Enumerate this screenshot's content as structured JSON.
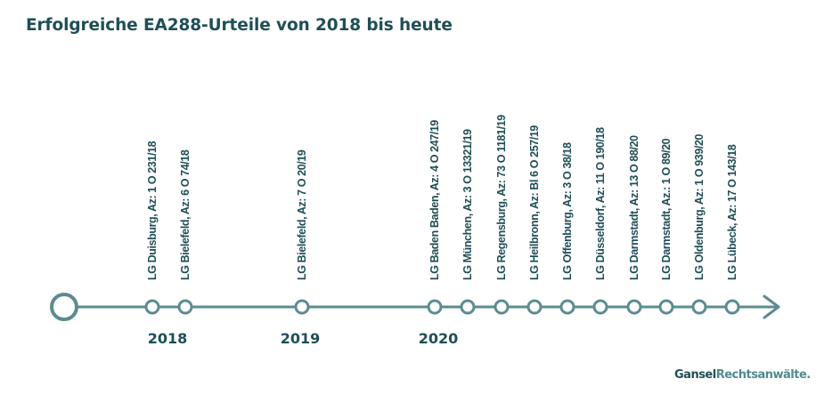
{
  "title": "Erfolgreiche EA288-Urteile von 2018 bis heute",
  "colors": {
    "axis": "#5b8c90",
    "text": "#1e4f55",
    "brand_dark": "#1e4f55",
    "brand_light": "#4f8a8f"
  },
  "years": [
    {
      "label": "2018"
    },
    {
      "label": "2019"
    },
    {
      "label": "2020"
    }
  ],
  "events": [
    {
      "year": "2018",
      "label": "LG Duisburg, Az: 1 O 231/18"
    },
    {
      "year": "2018",
      "label": "LG Bielefeld, Az: 6 O 74/18"
    },
    {
      "year": "2019",
      "label": "LG Bielefeld, Az: 7 O 20/19"
    },
    {
      "year": "2020",
      "label": "LG Baden Baden, Az: 4 O 247/19"
    },
    {
      "year": "2020",
      "label": "LG München, Az: 3 O 13321/19"
    },
    {
      "year": "2020",
      "label": "LG Regensburg, Az: 73 O 1181/19"
    },
    {
      "year": "2020",
      "label": "LG Heilbronn, Az: Bl 6 O 257/19"
    },
    {
      "year": "2020",
      "label": "LG Offenburg, Az: 3 O 38/18"
    },
    {
      "year": "2020",
      "label": "LG Düsseldorf, Az: 11 O 190/18"
    },
    {
      "year": "2020",
      "label": "LG Darmstadt, Az: 13 O 88/20"
    },
    {
      "year": "2020",
      "label": "LG Darmstadt, Az.: 1 O 89/20"
    },
    {
      "year": "2020",
      "label": "LG Oldenburg, Az: 1 O 939/20"
    },
    {
      "year": "2020",
      "label": "LG Lübeck, Az: 17 O 143/18"
    }
  ],
  "brand": {
    "part1": "Gansel",
    "part2": "Rechtsanwälte."
  }
}
